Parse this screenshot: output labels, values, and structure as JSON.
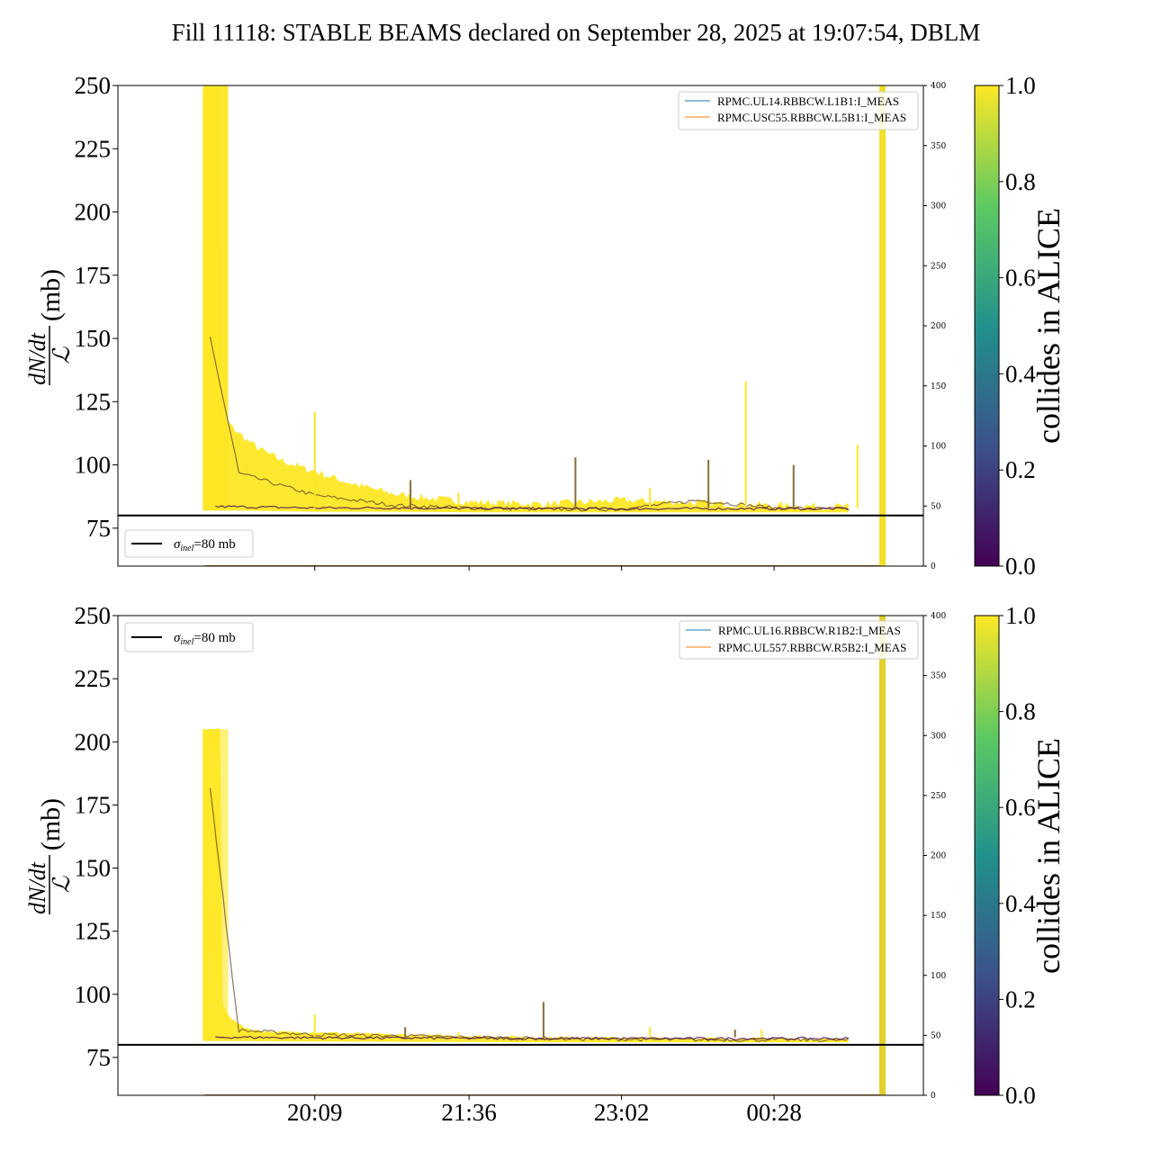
{
  "title": "Fill 11118: STABLE BEAMS declared on September 28, 2025 at 19:07:54, DBLM",
  "ylabel": {
    "numerator": "dN/dt",
    "denominator": "ℒ",
    "unit": "(mb)"
  },
  "colorbar": {
    "label": "collides in ALICE",
    "ticks": [
      "0.0",
      "0.2",
      "0.4",
      "0.6",
      "0.8",
      "1.0"
    ],
    "colors": [
      "#440154",
      "#3b528b",
      "#21918c",
      "#5ec962",
      "#fde725"
    ]
  },
  "colors": {
    "black": "#000000",
    "yellow": "#fde725",
    "blue_line": "#1f77b4",
    "orange_line": "#ff7f0e",
    "dark": "#440154"
  },
  "sigma_legend": {
    "label": "σ",
    "subscript": "inel",
    "value": "=80 mb"
  },
  "chart_data": [
    {
      "type": "line",
      "panel": "top",
      "x": [
        "19:07",
        "19:20",
        "20:09",
        "20:55",
        "21:36",
        "22:20",
        "23:02",
        "23:45",
        "00:28",
        "01:10"
      ],
      "xtick_labels": [
        "20:09",
        "21:36",
        "23:02",
        "00:28"
      ],
      "show_xtick_labels": false,
      "ylim": [
        60,
        250
      ],
      "yticks": [
        75,
        100,
        125,
        150,
        175,
        200,
        225,
        250
      ],
      "right_ylim": [
        0,
        400
      ],
      "right_yticks": [
        0,
        50,
        100,
        150,
        200,
        250,
        300,
        350,
        400
      ],
      "hline": 80,
      "legend_loc": "upper right",
      "legend": [
        "RPMC.UL14.RBBCW.L1B1:I_MEAS",
        "RPMC.USC55.RBBCW.L5B1:I_MEAS"
      ],
      "band_upper": [
        250,
        110,
        92,
        87,
        85,
        84.5,
        86,
        85,
        84,
        83.5
      ],
      "band_lower": [
        82,
        82,
        81.5,
        81.5,
        81.3,
        81.2,
        81.2,
        81.2,
        81.2,
        81.2
      ],
      "dark_mid": [
        160,
        98,
        88,
        84,
        83,
        82.5,
        82.5,
        86,
        83,
        82.5
      ],
      "spikes": [
        [
          20.15,
          121
        ],
        [
          21.05,
          94
        ],
        [
          21.5,
          89
        ],
        [
          22.6,
          103
        ],
        [
          23.3,
          91
        ],
        [
          23.85,
          102
        ],
        [
          24.2,
          133
        ],
        [
          24.65,
          100
        ],
        [
          25.25,
          108
        ]
      ],
      "end_band_x": 1.7
    },
    {
      "type": "line",
      "panel": "bottom",
      "x": [
        "19:07",
        "19:20",
        "20:09",
        "20:55",
        "21:36",
        "22:20",
        "23:02",
        "23:45",
        "00:28",
        "01:10"
      ],
      "xtick_labels": [
        "20:09",
        "21:36",
        "23:02",
        "00:28"
      ],
      "show_xtick_labels": true,
      "ylim": [
        60,
        250
      ],
      "yticks": [
        75,
        100,
        125,
        150,
        175,
        200,
        225,
        250
      ],
      "right_ylim": [
        0,
        400
      ],
      "right_yticks": [
        0,
        50,
        100,
        150,
        200,
        250,
        300,
        350,
        400
      ],
      "hline": 80,
      "legend_loc": "upper right",
      "legend": [
        "RPMC.UL16.RBBCW.R1B2:I_MEAS",
        "RPMC.UL557.RBBCW.R5B2:I_MEAS"
      ],
      "band_upper": [
        205,
        88,
        85,
        84,
        83.5,
        83,
        82.8,
        82.6,
        82.5,
        82.3
      ],
      "band_lower": [
        81.5,
        81.5,
        81.3,
        81.2,
        81.1,
        81,
        81,
        81,
        81,
        81
      ],
      "dark_mid": [
        200,
        86,
        84,
        83.5,
        83,
        82.5,
        82.2,
        82,
        82,
        81.8
      ],
      "spikes": [
        [
          20.15,
          92
        ],
        [
          21.0,
          87
        ],
        [
          21.5,
          85
        ],
        [
          22.3,
          97
        ],
        [
          23.3,
          87
        ],
        [
          24.1,
          86
        ],
        [
          24.35,
          86
        ]
      ],
      "end_band_x": 1.7
    }
  ]
}
